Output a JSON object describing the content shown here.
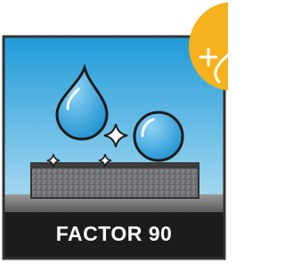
{
  "label": "FACTOR 90"
}
